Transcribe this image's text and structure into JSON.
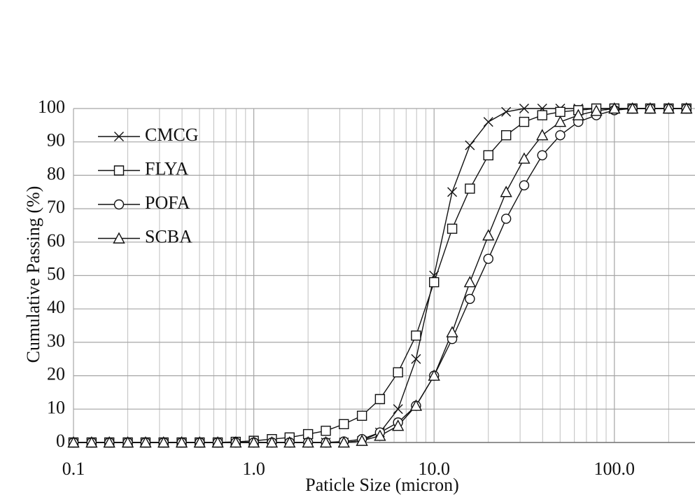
{
  "chart_data": {
    "type": "line",
    "x_label": "Paticle Size (micron)",
    "y_label": "Cumulative Passing  (%)",
    "x_log": true,
    "grid": true,
    "legend": "top-left",
    "xlim": [
      0.1,
      280
    ],
    "xticks": [
      {
        "value": 0.1,
        "label": "0.1"
      },
      {
        "value": 1,
        "label": "1.0"
      },
      {
        "value": 10,
        "label": "10.0"
      },
      {
        "value": 100,
        "label": "100.0"
      }
    ],
    "xminorticks": [
      0.2,
      0.3,
      0.4,
      0.5,
      0.6,
      0.7,
      0.8,
      0.9,
      2,
      3,
      4,
      5,
      6,
      7,
      8,
      9,
      20,
      30,
      40,
      50,
      60,
      70,
      80,
      90,
      200
    ],
    "ylim": [
      0,
      100
    ],
    "yticks": [
      0,
      10,
      20,
      30,
      40,
      50,
      60,
      70,
      80,
      90,
      100
    ],
    "x": [
      0.1,
      0.126,
      0.158,
      0.2,
      0.251,
      0.316,
      0.398,
      0.501,
      0.631,
      0.794,
      1,
      1.26,
      1.58,
      2,
      2.51,
      3.16,
      3.98,
      5.01,
      6.31,
      7.94,
      10,
      12.6,
      15.8,
      20,
      25.1,
      31.6,
      39.8,
      50.1,
      63.1,
      79.4,
      100,
      126,
      158,
      200,
      251
    ],
    "series": [
      {
        "name": "CMCG",
        "marker": "x",
        "color": "#111111",
        "values": [
          0,
          0,
          0,
          0,
          0,
          0,
          0,
          0,
          0,
          0,
          0,
          0,
          0,
          0,
          0,
          0,
          0.5,
          3,
          10,
          25,
          50,
          75,
          89,
          96,
          99,
          100,
          100,
          100,
          100,
          100,
          100,
          100,
          100,
          100,
          100
        ]
      },
      {
        "name": "FLYA",
        "marker": "square",
        "color": "#111111",
        "values": [
          0,
          0,
          0,
          0,
          0,
          0,
          0,
          0,
          0,
          0.2,
          0.5,
          1,
          1.5,
          2.5,
          3.5,
          5.5,
          8,
          13,
          21,
          32,
          48,
          64,
          76,
          86,
          92,
          96,
          98,
          99,
          99.5,
          100,
          100,
          100,
          100,
          100,
          100
        ]
      },
      {
        "name": "POFA",
        "marker": "circle",
        "color": "#111111",
        "values": [
          0,
          0,
          0,
          0,
          0,
          0,
          0,
          0,
          0,
          0,
          0,
          0,
          0,
          0,
          0,
          0.3,
          1,
          3,
          6,
          11,
          20,
          31,
          43,
          55,
          67,
          77,
          86,
          92,
          96,
          98,
          99.5,
          100,
          100,
          100,
          100
        ]
      },
      {
        "name": "SCBA",
        "marker": "triangle",
        "color": "#111111",
        "values": [
          0,
          0,
          0,
          0,
          0,
          0,
          0,
          0,
          0,
          0,
          0,
          0,
          0,
          0,
          0,
          0,
          0.5,
          2,
          5,
          11,
          20,
          33,
          48,
          62,
          75,
          85,
          92,
          96,
          98,
          99.3,
          100,
          100,
          100,
          100,
          100
        ]
      }
    ]
  }
}
